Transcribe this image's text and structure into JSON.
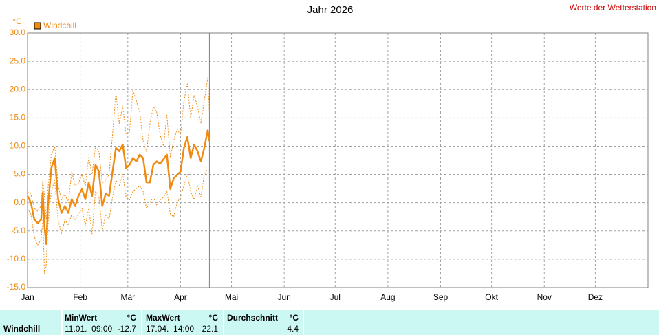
{
  "chart_data": {
    "type": "line",
    "title": "Jahr 2026",
    "source": "Werte der Wetterstation",
    "y_unit": "°C",
    "x": [
      0,
      2,
      4,
      6,
      8,
      9,
      10,
      11,
      12,
      14,
      16,
      18,
      20,
      22,
      24,
      26,
      28,
      30,
      32,
      34,
      36,
      38,
      40,
      42,
      44,
      46,
      48,
      50,
      52,
      54,
      56,
      58,
      60,
      62,
      64,
      66,
      68,
      70,
      72,
      74,
      76,
      78,
      80,
      82,
      84,
      86,
      88,
      90,
      92,
      94,
      96,
      98,
      100,
      102,
      104,
      106,
      107
    ],
    "series": [
      {
        "name": "Windchill",
        "color": "#f08a10",
        "values": [
          1.2,
          0,
          -3.0,
          -3.6,
          -3.0,
          1.8,
          -4.3,
          -7.3,
          -0.6,
          6.1,
          7.9,
          0.6,
          -1.8,
          -0.6,
          -1.8,
          0.6,
          -0.6,
          1.2,
          2.4,
          0.6,
          3.6,
          1.2,
          6.7,
          5.5,
          -0.6,
          1.6,
          1.2,
          5.5,
          9.7,
          9.1,
          10.3,
          6.1,
          6.7,
          7.9,
          7.3,
          8.5,
          7.9,
          3.6,
          3.6,
          6.7,
          7.3,
          6.9,
          7.7,
          8.5,
          2.4,
          4.3,
          4.9,
          5.5,
          9.7,
          11.6,
          7.9,
          10.3,
          9.1,
          7.3,
          9.7,
          12.8,
          10.9
        ]
      },
      {
        "color": "#f08a10",
        "values": [
          2.0,
          1.5,
          -1.0,
          -1.5,
          -0.5,
          4.0,
          1.0,
          -3.0,
          2.5,
          8.5,
          10.0,
          3.0,
          0.5,
          1.5,
          0.0,
          5.5,
          3.0,
          3.5,
          5.0,
          3.0,
          8.0,
          5.0,
          10.0,
          9.0,
          3.5,
          4.0,
          5.0,
          12.0,
          19.5,
          14.0,
          17.0,
          12.0,
          12.5,
          20.0,
          18.0,
          16.0,
          11.0,
          9.0,
          14.0,
          17.0,
          16.0,
          12.0,
          10.0,
          15.5,
          8.0,
          11.0,
          13.0,
          12.0,
          18.0,
          21.0,
          15.0,
          19.0,
          17.0,
          14.0,
          18.0,
          22.1,
          16.0
        ]
      },
      {
        "color": "#f08a10",
        "values": [
          -1.0,
          -2.0,
          -6.0,
          -7.5,
          -6.5,
          -3.0,
          -12.7,
          -11.0,
          -4.0,
          2.0,
          4.0,
          -3.0,
          -5.5,
          -3.0,
          -4.0,
          -2.0,
          -3.0,
          -2.0,
          -1.0,
          -4.0,
          -1.0,
          -5.5,
          2.0,
          1.0,
          -5.0,
          -2.0,
          -3.0,
          1.0,
          4.0,
          3.0,
          5.0,
          1.0,
          0.5,
          2.0,
          2.5,
          3.0,
          2.0,
          -1.0,
          0.0,
          1.0,
          -0.5,
          0.5,
          1.0,
          2.0,
          -2.0,
          -2.5,
          0.0,
          1.0,
          3.0,
          5.0,
          2.0,
          0.5,
          3.0,
          1.0,
          5.0,
          6.0,
          5.5
        ]
      }
    ],
    "today_x": 107,
    "xlim": [
      0,
      365
    ],
    "xticks": [
      {
        "value": 0,
        "label": "Jan"
      },
      {
        "value": 31,
        "label": "Feb"
      },
      {
        "value": 59,
        "label": "Mär"
      },
      {
        "value": 90,
        "label": "Apr"
      },
      {
        "value": 120,
        "label": "Mai"
      },
      {
        "value": 151,
        "label": "Jun"
      },
      {
        "value": 181,
        "label": "Jul"
      },
      {
        "value": 212,
        "label": "Aug"
      },
      {
        "value": 243,
        "label": "Sep"
      },
      {
        "value": 273,
        "label": "Okt"
      },
      {
        "value": 304,
        "label": "Nov"
      },
      {
        "value": 334,
        "label": "Dez"
      }
    ],
    "ylim": [
      -15,
      30
    ],
    "yticks": [
      {
        "value": -15,
        "label": "-15.0"
      },
      {
        "value": -10,
        "label": "-10.0"
      },
      {
        "value": -5,
        "label": "-5.0"
      },
      {
        "value": 0,
        "label": "0.0"
      },
      {
        "value": 5,
        "label": "5.0"
      },
      {
        "value": 10,
        "label": "10.0"
      },
      {
        "value": 15,
        "label": "15.0"
      },
      {
        "value": 20,
        "label": "20.0"
      },
      {
        "value": 25,
        "label": "25.0"
      },
      {
        "value": 30,
        "label": "30.0"
      }
    ],
    "grid": true
  },
  "summary": {
    "row_label": "Windchill",
    "headers": [
      "MinWert",
      "°C",
      "MaxWert",
      "°C",
      "Durchschnitt",
      "°C"
    ],
    "min_time": "11.01.  09:00",
    "min_value": -12.7,
    "max_time": "17.04.  14:00",
    "max_value": 22.1,
    "average": 4.4
  }
}
